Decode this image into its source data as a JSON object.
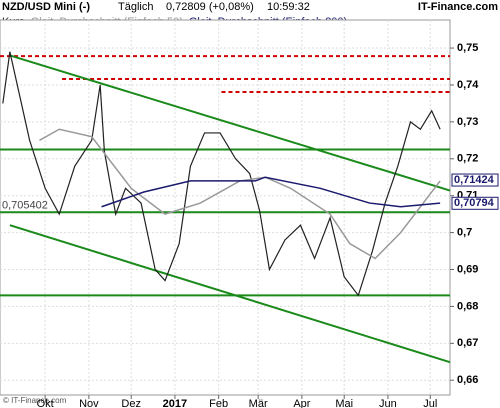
{
  "chart_data": {
    "type": "line",
    "symbol": "NZD/USD Mini (-)",
    "interval": "Täglich",
    "quote": "0,72809 (+0,08%)",
    "time": "10:59:32",
    "brand": "IT-Finance.com",
    "footer": "© IT-Finance.com",
    "xlim": [
      -2,
      317
    ],
    "xticks": [
      {
        "value": 30,
        "label": "Okt"
      },
      {
        "value": 61,
        "label": "Nov"
      },
      {
        "value": 91,
        "label": "Dez"
      },
      {
        "value": 122,
        "label": "2017"
      },
      {
        "value": 153,
        "label": "Feb"
      },
      {
        "value": 181,
        "label": "Mär"
      },
      {
        "value": 212,
        "label": "Apr"
      },
      {
        "value": 242,
        "label": "Mai"
      },
      {
        "value": 273,
        "label": "Jun"
      },
      {
        "value": 303,
        "label": "Jul"
      }
    ],
    "ylim": [
      0.656,
      0.7576
    ],
    "yticks": [
      {
        "value": 0.66,
        "label": "0,66"
      },
      {
        "value": 0.67,
        "label": "0,67"
      },
      {
        "value": 0.68,
        "label": "0,68"
      },
      {
        "value": 0.69,
        "label": "0,69"
      },
      {
        "value": 0.7,
        "label": "0,7"
      },
      {
        "value": 0.71,
        "label": "0,71"
      },
      {
        "value": 0.72,
        "label": "0,72"
      },
      {
        "value": 0.73,
        "label": "0,73"
      },
      {
        "value": 0.74,
        "label": "0,74"
      },
      {
        "value": 0.75,
        "label": "0,75"
      }
    ],
    "grid": true,
    "series": [
      {
        "name": "Kurs",
        "color": "#222222",
        "x": [
          0,
          5,
          19,
          30,
          40,
          51,
          63,
          69,
          72,
          80,
          87,
          98,
          108,
          115,
          125,
          133,
          143,
          154,
          165,
          175,
          182,
          189,
          200,
          211,
          221,
          232,
          242,
          252,
          262,
          271,
          280,
          289,
          296,
          304,
          310
        ],
        "values": [
          0.735,
          0.749,
          0.725,
          0.712,
          0.705,
          0.718,
          0.725,
          0.74,
          0.722,
          0.705,
          0.712,
          0.708,
          0.69,
          0.687,
          0.697,
          0.718,
          0.727,
          0.727,
          0.72,
          0.716,
          0.706,
          0.69,
          0.698,
          0.702,
          0.693,
          0.704,
          0.688,
          0.683,
          0.695,
          0.708,
          0.718,
          0.73,
          0.728,
          0.733,
          0.728
        ]
      },
      {
        "name": "Gleit. Durchschnitt (Einfach 50)",
        "color": "#999999",
        "x": [
          26,
          40,
          63,
          91,
          115,
          140,
          168,
          186,
          204,
          232,
          246,
          264,
          282,
          310
        ],
        "values": [
          0.725,
          0.728,
          0.726,
          0.712,
          0.705,
          0.708,
          0.714,
          0.715,
          0.712,
          0.705,
          0.697,
          0.693,
          0.7,
          0.714
        ]
      },
      {
        "name": "Gleit. Durchschnitt (Einfach 200)",
        "color": "#1a1a6e",
        "x": [
          70,
          100,
          133,
          179,
          186,
          225,
          260,
          282,
          310
        ],
        "values": [
          0.707,
          0.711,
          0.714,
          0.714,
          0.715,
          0.712,
          0.708,
          0.707,
          0.708
        ]
      }
    ],
    "levels": [
      {
        "value": 0.7478,
        "color": "#d00000",
        "dash": true,
        "from": -2
      },
      {
        "value": 0.7416,
        "color": "#d00000",
        "dash": true,
        "from": 42
      },
      {
        "value": 0.7381,
        "color": "#d00000",
        "dash": true,
        "from": 155
      },
      {
        "value": 0.7225,
        "color": "#1a8a1a",
        "dash": false,
        "from": -2
      },
      {
        "value": 0.7055,
        "color": "#1a8a1a",
        "dash": false,
        "from": -2
      },
      {
        "value": 0.683,
        "color": "#1a8a1a",
        "dash": false,
        "from": -2
      }
    ],
    "trendlines": [
      {
        "x": [
          5,
          317
        ],
        "values": [
          0.748,
          0.7114
        ],
        "color": "#1a8a1a"
      },
      {
        "x": [
          5,
          317
        ],
        "values": [
          0.702,
          0.6649
        ],
        "color": "#1a8a1a"
      }
    ],
    "price_labels": [
      {
        "value": 0.71424,
        "label": "0,71424"
      },
      {
        "value": 0.70794,
        "label": "0,70794"
      }
    ],
    "left_label": {
      "value": 0.705402,
      "label": "0,705402"
    }
  }
}
